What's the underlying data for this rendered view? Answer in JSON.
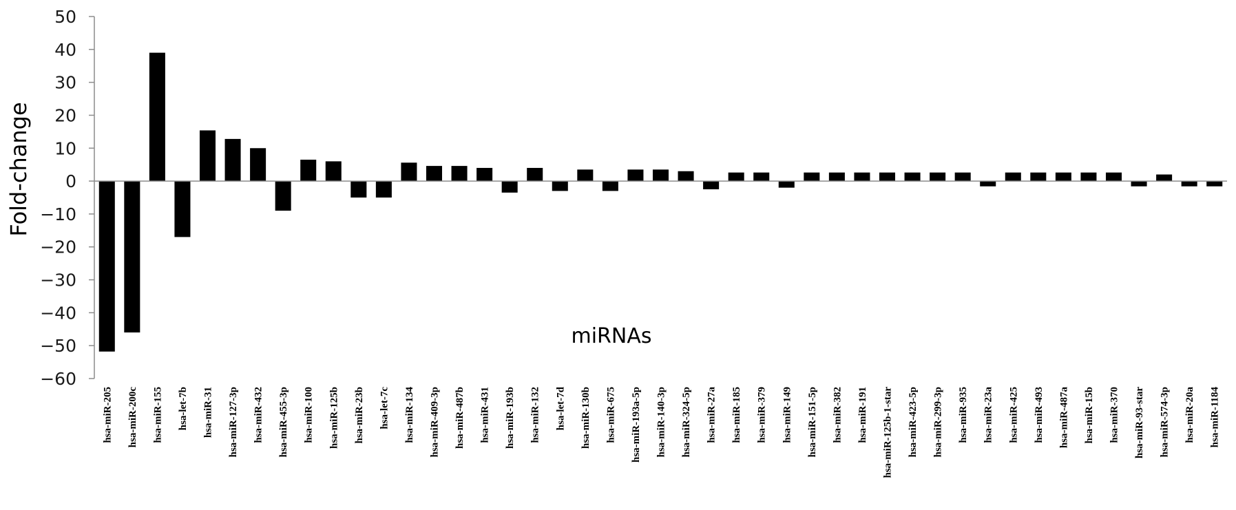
{
  "chart_data": {
    "type": "bar",
    "title": "",
    "xlabel": "miRNAs",
    "ylabel": "Fold-change",
    "ylim": [
      -60,
      50
    ],
    "yticks": [
      50,
      40,
      30,
      20,
      10,
      0,
      -10,
      -20,
      -30,
      -40,
      -50,
      -60
    ],
    "grid": false,
    "legend": "none",
    "bar_color": "#000000",
    "categories": [
      "hsa-miR-205",
      "hsa-miR-200c",
      "hsa-miR-155",
      "hsa-let-7b",
      "hsa-miR-31",
      "hsa-miR-127-3p",
      "hsa-miR-432",
      "hsa-miR-455-3p",
      "hsa-miR-100",
      "hsa-miR-125b",
      "hsa-miR-23b",
      "hsa-let-7c",
      "hsa-miR-134",
      "hsa-miR-409-3p",
      "hsa-miR-487b",
      "hsa-miR-431",
      "hsa-miR-193b",
      "hsa-miR-132",
      "hsa-let-7d",
      "hsa-miR-130b",
      "hsa-miR-675",
      "hsa-miR-193a-5p",
      "hsa-miR-140-3p",
      "hsa-miR-324-5p",
      "hsa-miR-27a",
      "hsa-miR-185",
      "hsa-miR-379",
      "hsa-miR-149",
      "hsa-miR-151-5p",
      "hsa-miR-382",
      "hsa-miR-191",
      "hsa-miR-125b-1-star",
      "hsa-miR-423-5p",
      "hsa-miR-299-3p",
      "hsa-miR-935",
      "hsa-miR-23a",
      "hsa-miR-425",
      "hsa-miR-493",
      "hsa-miR-487a",
      "hsa-miR-15b",
      "hsa-miR-370",
      "hsa-miR-93-star",
      "hsa-miR-574-3p",
      "hsa-miR-20a",
      "hsa-miR-1184"
    ],
    "values": [
      -51.8,
      -46,
      39,
      -17,
      15.4,
      12.8,
      10,
      -9,
      6.5,
      6,
      -5,
      -5,
      5.6,
      4.6,
      4.6,
      4,
      -3.5,
      4,
      -3,
      3.5,
      -3,
      3.5,
      3.5,
      3,
      -2.5,
      2.6,
      2.6,
      -2,
      2.6,
      2.6,
      2.6,
      2.6,
      2.6,
      2.6,
      2.6,
      -1.6,
      2.6,
      2.6,
      2.6,
      2.6,
      2.6,
      -1.6,
      2,
      -1.6,
      -1.6
    ]
  }
}
